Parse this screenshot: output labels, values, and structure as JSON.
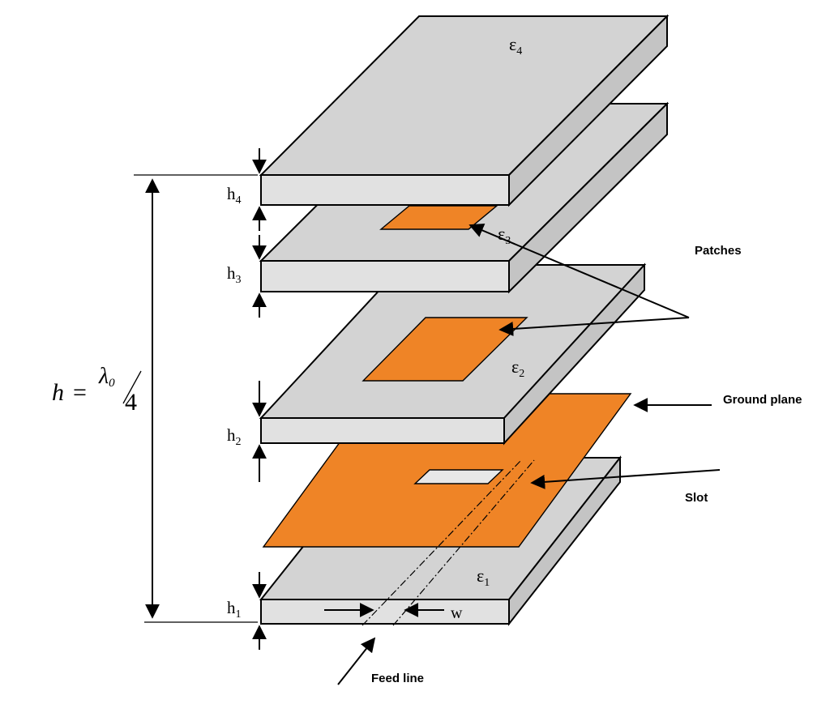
{
  "labels": {
    "eps4": "ε",
    "eps4_sub": "4",
    "eps3": "ε",
    "eps3_sub": "3",
    "eps2": "ε",
    "eps2_sub": "2",
    "eps1": "ε",
    "eps1_sub": "1",
    "h4": "h",
    "h4_sub": "4",
    "h3": "h",
    "h3_sub": "3",
    "h2": "h",
    "h2_sub": "2",
    "h1": "h",
    "h1_sub": "1",
    "w": "w",
    "formula_h": "h",
    "formula_eq": "=",
    "formula_lambda": "λ",
    "formula_lambda_sub": "0",
    "formula_denominator": "4",
    "patches": "Patches",
    "ground_plane": "Ground plane",
    "slot": "Slot",
    "feed_line": "Feed line"
  },
  "colors": {
    "copper": "#ef8426",
    "dielectric_top": "#d3d3d3",
    "dielectric_front": "#e1e1e1",
    "dielectric_side": "#c4c4c4"
  }
}
